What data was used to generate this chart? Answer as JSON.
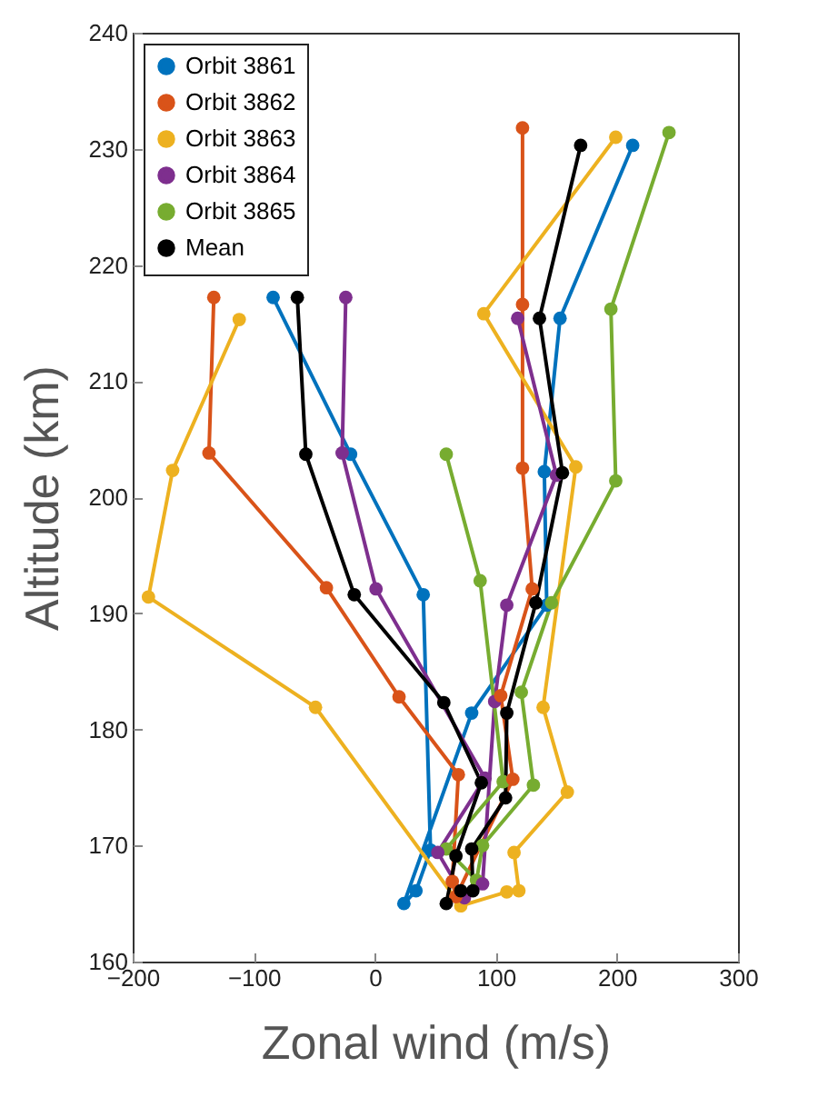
{
  "chart_data": {
    "type": "line",
    "xlabel": "Zonal wind (m/s)",
    "ylabel": "Altitude (km)",
    "xlim": [
      -200,
      300
    ],
    "xticks": [
      -200,
      -100,
      0,
      100,
      200,
      300
    ],
    "ylim": [
      160,
      240
    ],
    "yticks": [
      160,
      170,
      180,
      190,
      200,
      210,
      220,
      230,
      240
    ],
    "grid": false,
    "legend": "top left",
    "marker": "circle",
    "line_style": "solid",
    "series": [
      {
        "name": "Orbit 3861",
        "color": "#0072bd",
        "x": [
          -84,
          -20,
          40,
          46,
          34,
          24,
          80,
          142,
          140,
          153,
          213
        ],
        "values": [
          217.2,
          203.7,
          191.6,
          169.6,
          166.1,
          165,
          181.4,
          190.7,
          202.2,
          215.4,
          230.3
        ]
      },
      {
        "name": "Orbit 3862",
        "color": "#d95319",
        "x": [
          -133,
          -137,
          -40,
          20,
          69,
          64,
          67,
          114,
          104,
          130,
          122,
          122,
          122
        ],
        "values": [
          217.2,
          203.8,
          192.2,
          182.8,
          176.1,
          166.9,
          165.6,
          175.7,
          182.9,
          192.1,
          202.5,
          216.6,
          231.8
        ]
      },
      {
        "name": "Orbit 3863",
        "color": "#edb120",
        "x": [
          -112,
          -167,
          -187,
          -49,
          71,
          109,
          119,
          115,
          159,
          139,
          166,
          90,
          199
        ],
        "values": [
          215.3,
          202.3,
          191.4,
          181.9,
          164.8,
          166,
          166.1,
          169.4,
          174.6,
          181.9,
          202.6,
          215.8,
          231
        ]
      },
      {
        "name": "Orbit 3864",
        "color": "#7e2f8e",
        "x": [
          -24,
          -27,
          1,
          91,
          52,
          74,
          89,
          99,
          109,
          150,
          118
        ],
        "values": [
          217.2,
          203.8,
          192.1,
          175.8,
          169.4,
          165.5,
          166.7,
          182.4,
          190.7,
          201.9,
          215.4
        ]
      },
      {
        "name": "Orbit 3865",
        "color": "#77ac30",
        "x": [
          59,
          87,
          106,
          59,
          84,
          89,
          131,
          121,
          146,
          199,
          195,
          243
        ],
        "values": [
          203.7,
          192.8,
          175.5,
          169.7,
          167,
          170,
          175.2,
          183.2,
          190.9,
          201.4,
          216.2,
          231.4
        ]
      },
      {
        "name": "Mean",
        "color": "#000000",
        "x": [
          -64,
          -57,
          -17,
          57,
          88,
          67,
          59,
          71,
          81,
          80,
          108,
          109,
          133,
          155,
          136,
          170
        ],
        "values": [
          217.2,
          203.7,
          191.6,
          182.3,
          175.4,
          169.1,
          165,
          166.1,
          166.1,
          169.7,
          174.1,
          181.4,
          190.9,
          202.1,
          215.4,
          230.3
        ]
      }
    ]
  }
}
